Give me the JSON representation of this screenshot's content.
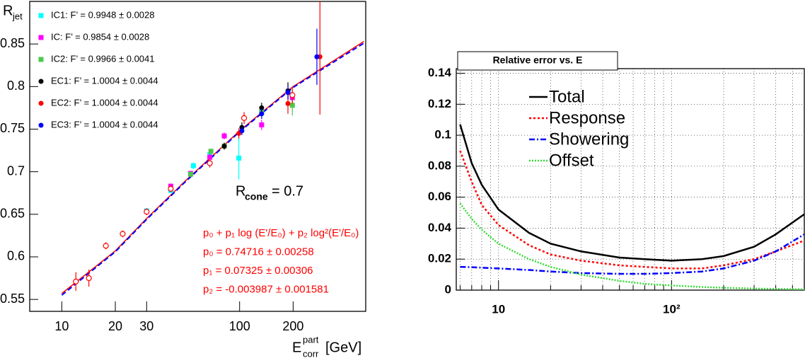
{
  "chart_data": [
    {
      "type": "scatter",
      "xlog": true,
      "xlim": [
        6.6,
        512
      ],
      "ylim": [
        0.536,
        0.9
      ],
      "xticks": [
        10,
        20,
        30,
        100,
        200
      ],
      "yticks": [
        0.55,
        0.6,
        0.65,
        0.7,
        0.75,
        0.8,
        0.85
      ],
      "ylabel": {
        "base": "R",
        "sub": "jet"
      },
      "xlabel": {
        "base": "E",
        "sup": "part",
        "sub": "corr",
        "unit": "[GeV]"
      },
      "legend": "upper left",
      "series": [
        {
          "name": "IC1: F’ = 0.9948 ± 0.0028",
          "color": "#00ffff",
          "marker": "square",
          "x": [
            30,
            41,
            55,
            68,
            99
          ],
          "values": [
            0.654,
            0.678,
            0.707,
            0.72,
            0.716
          ],
          "errors": [
            0.002,
            0.003,
            0.004,
            0.004,
            0.025
          ]
        },
        {
          "name": "IC: F’ = 0.9854 ± 0.0028",
          "color": "#ff00ff",
          "marker": "square",
          "x": [
            41,
            53,
            68,
            82,
            133,
            198
          ],
          "values": [
            0.683,
            0.698,
            0.717,
            0.742,
            0.755,
            0.787
          ],
          "errors": [
            0.003,
            0.003,
            0.004,
            0.004,
            0.006,
            0.007
          ]
        },
        {
          "name": "IC2: F’ = 0.9966 ± 0.0041",
          "color": "#4cc84c",
          "marker": "square",
          "x": [
            53,
            69,
            82,
            133,
            198
          ],
          "values": [
            0.697,
            0.724,
            0.73,
            0.77,
            0.778
          ],
          "errors": [
            0.003,
            0.003,
            0.004,
            0.006,
            0.012
          ]
        },
        {
          "name": "EC1: F’ = 1.0004 ± 0.0044",
          "color": "#000000",
          "marker": "circle",
          "x": [
            82,
            103,
            133,
            187
          ],
          "values": [
            0.73,
            0.752,
            0.775,
            0.795
          ],
          "errors": [
            0.004,
            0.006,
            0.006,
            0.01
          ]
        },
        {
          "name": "EC2: F’ = 1.0004 ± 0.0044",
          "color": "#ff0000",
          "marker": "circle",
          "x": [
            99,
            187,
            283
          ],
          "values": [
            0.745,
            0.78,
            0.835
          ],
          "errors": [
            0.006,
            0.012,
            0.068
          ]
        },
        {
          "name": "EC3: F’ = 1.0004 ± 0.0044",
          "color": "#0000ff",
          "marker": "circle",
          "x": [
            103,
            133,
            187,
            272
          ],
          "values": [
            0.748,
            0.768,
            0.793,
            0.835
          ],
          "errors": [
            0.005,
            0.006,
            0.008,
            0.033
          ]
        },
        {
          "color": "#ff0000",
          "marker": "open-circle",
          "x": [
            12,
            14.2,
            17.7,
            22,
            30,
            41,
            68,
            106,
            198
          ],
          "values": [
            0.571,
            0.575,
            0.613,
            0.627,
            0.653,
            0.68,
            0.71,
            0.763,
            0.79
          ],
          "errors": [
            0.011,
            0.01,
            0.004,
            0.004,
            0.004,
            0.004,
            0.005,
            0.007,
            0.01
          ]
        }
      ],
      "fits": [
        {
          "color": "#ff0000",
          "style": "solid",
          "x": [
            10,
            20,
            30,
            50,
            100,
            200,
            500
          ],
          "values": [
            0.557,
            0.607,
            0.645,
            0.69,
            0.748,
            0.8,
            0.853
          ]
        },
        {
          "color": "#0000ff",
          "style": "dashed",
          "x": [
            10,
            20,
            30,
            50,
            100,
            200,
            500
          ],
          "values": [
            0.555,
            0.606,
            0.644,
            0.689,
            0.747,
            0.799,
            0.851
          ]
        }
      ],
      "annotation": {
        "base": "R",
        "sub": "cone",
        "rest": "= 0.7"
      },
      "fit_text": [
        "p₀ + p₁ log (E'/E₀) + p₂ log²(E'/E₀)",
        "p₀ = 0.74716 ± 0.00258",
        "p₁ = 0.07325 ± 0.00306",
        "p₂ = -0.003987 ± 0.001581"
      ]
    },
    {
      "type": "line",
      "title": "Relative error vs. E",
      "xlog": true,
      "xlim": [
        5.7,
        585
      ],
      "ylim": [
        0,
        0.143
      ],
      "xticks": [
        10,
        {
          "value": 100,
          "label": "10²"
        }
      ],
      "yticks": [
        0,
        0.02,
        0.04,
        0.06,
        0.08,
        0.1,
        0.12,
        0.14
      ],
      "grid": true,
      "xgrid": [
        6,
        7,
        8,
        9,
        20,
        30,
        40,
        50,
        60,
        70,
        80,
        90,
        200,
        300,
        400,
        500
      ],
      "x": [
        6,
        7,
        8,
        10,
        15,
        20,
        30,
        50,
        70,
        100,
        150,
        200,
        300,
        400,
        585
      ],
      "series": [
        {
          "name": "Total",
          "color": "#000000",
          "style": "solid",
          "values": [
            0.107,
            0.082,
            0.068,
            0.052,
            0.037,
            0.03,
            0.025,
            0.021,
            0.02,
            0.019,
            0.02,
            0.022,
            0.028,
            0.036,
            0.049
          ]
        },
        {
          "name": "Response",
          "color": "#ff0000",
          "style": "dotted",
          "values": [
            0.09,
            0.07,
            0.055,
            0.042,
            0.029,
            0.023,
            0.019,
            0.016,
            0.015,
            0.014,
            0.014,
            0.016,
            0.02,
            0.025,
            0.032
          ]
        },
        {
          "name": "Showering",
          "color": "#0000ff",
          "style": "dashdot",
          "values": [
            0.015,
            0.0148,
            0.0145,
            0.014,
            0.013,
            0.012,
            0.011,
            0.0105,
            0.0105,
            0.011,
            0.012,
            0.014,
            0.019,
            0.025,
            0.036
          ]
        },
        {
          "name": "Offset",
          "color": "#33dd33",
          "style": "fine-dotted",
          "values": [
            0.056,
            0.046,
            0.039,
            0.03,
            0.02,
            0.015,
            0.01,
            0.006,
            0.004,
            0.003,
            0.002,
            0.0015,
            0.001,
            0.0008,
            0.0005
          ]
        }
      ]
    }
  ]
}
